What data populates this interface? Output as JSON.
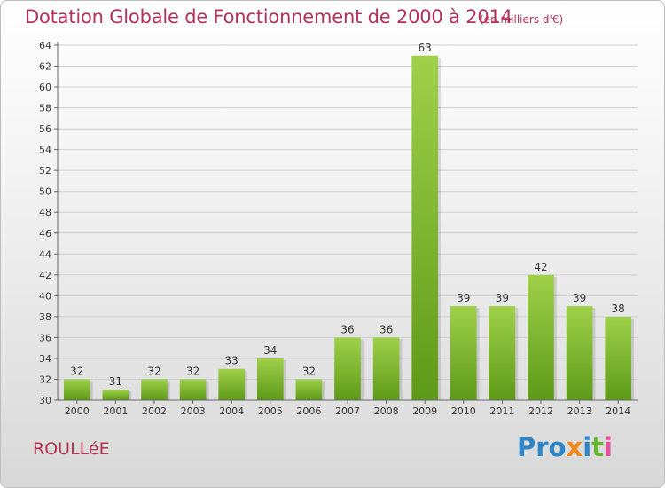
{
  "header": {
    "title": "Dotation Globale de Fonctionnement de 2000 à 2014",
    "subtitle": "(en milliers d'€)"
  },
  "footer": {
    "commune": "ROULLéE",
    "logo_parts": [
      "Pro",
      "x",
      "i",
      "t",
      "i"
    ]
  },
  "colors": {
    "title": "#b2325a",
    "bar_top": "#9fd04a",
    "bar_bottom": "#5d9a17",
    "axis": "#666666",
    "grid": "#cfcfcf"
  },
  "chart_data": {
    "type": "bar",
    "title": "Dotation Globale de Fonctionnement de 2000 à 2014",
    "subtitle": "(en milliers d'€)",
    "categories": [
      "2000",
      "2001",
      "2002",
      "2003",
      "2004",
      "2005",
      "2006",
      "2007",
      "2008",
      "2009",
      "2010",
      "2011",
      "2012",
      "2013",
      "2014"
    ],
    "values": [
      32,
      31,
      32,
      32,
      33,
      34,
      32,
      36,
      36,
      63,
      39,
      39,
      42,
      39,
      38
    ],
    "ylim": [
      30,
      64
    ],
    "yticks": [
      30,
      32,
      34,
      36,
      38,
      40,
      42,
      44,
      46,
      48,
      50,
      52,
      54,
      56,
      58,
      60,
      62,
      64
    ],
    "grid": "horizontal",
    "data_labels": true
  }
}
